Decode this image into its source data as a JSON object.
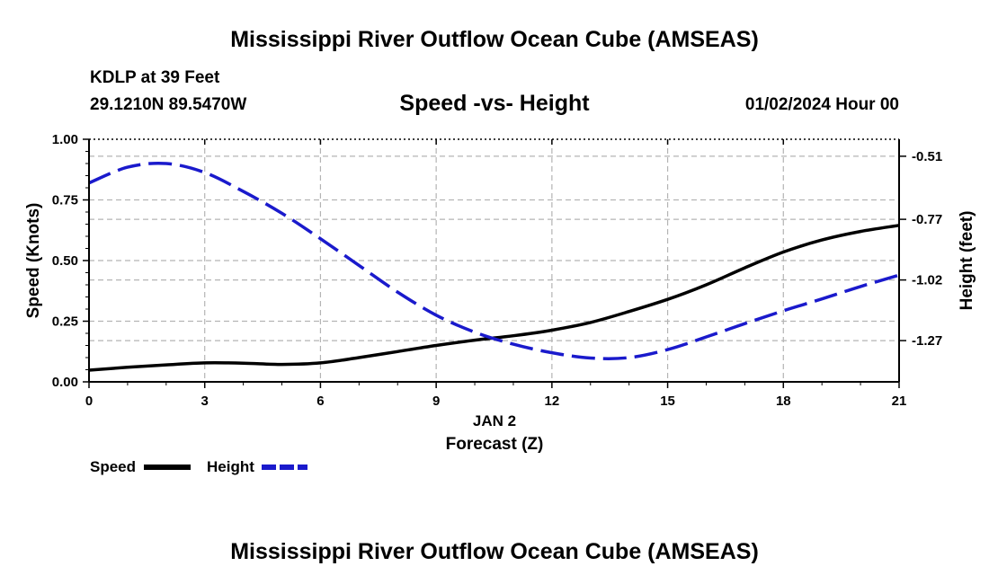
{
  "page": {
    "title": "Mississippi River Outflow Ocean Cube (AMSEAS)",
    "title_bottom": "Mississippi River Outflow Ocean Cube (AMSEAS)",
    "station": "KDLP at 39 Feet",
    "coords": "29.1210N  89.5470W",
    "datetime": "01/02/2024 Hour 00"
  },
  "legend": {
    "speed_label": "Speed",
    "height_label": "Height"
  },
  "colors": {
    "speed": "#000000",
    "height": "#1a1acc",
    "grid": "#b4b4b4"
  },
  "chart_data": {
    "type": "line",
    "title": "Speed -vs- Height",
    "xlabel": "Forecast (Z)",
    "x_date_label": "JAN 2",
    "ylabel": "Speed (Knots)",
    "y2label": "Height (feet)",
    "xlim": [
      0,
      21
    ],
    "ylim": [
      0,
      1
    ],
    "y2lim": [
      -1.44,
      -0.44
    ],
    "x_ticks": [
      0,
      3,
      6,
      9,
      12,
      15,
      18,
      21
    ],
    "x_tick_labels": [
      "0",
      "3",
      "6",
      "9",
      "12",
      "15",
      "18",
      "21"
    ],
    "y_ticks": [
      0,
      0.25,
      0.5,
      0.75,
      1.0
    ],
    "y_tick_labels": [
      "0.00",
      "0.25",
      "0.50",
      "0.75",
      "1.00"
    ],
    "y2_ticks": [
      -1.27,
      -1.02,
      -0.77,
      -0.51
    ],
    "y2_tick_labels": [
      "-1.27",
      "-1.02",
      "-0.77",
      "-0.51"
    ],
    "grid": true,
    "series": [
      {
        "name": "Speed",
        "axis": "left",
        "style": "solid",
        "x": [
          0,
          1,
          2,
          3,
          4,
          5,
          6,
          7,
          8,
          9,
          10,
          11,
          12,
          13,
          14,
          15,
          16,
          17,
          18,
          19,
          20,
          21
        ],
        "y": [
          0.048,
          0.06,
          0.07,
          0.078,
          0.077,
          0.072,
          0.078,
          0.1,
          0.125,
          0.15,
          0.172,
          0.19,
          0.213,
          0.245,
          0.29,
          0.34,
          0.4,
          0.47,
          0.535,
          0.585,
          0.62,
          0.645
        ]
      },
      {
        "name": "Height",
        "axis": "right",
        "style": "dashed",
        "x": [
          0,
          1,
          2,
          3,
          4,
          5,
          6,
          7,
          8,
          9,
          10,
          11,
          12,
          13,
          14,
          15,
          16,
          17,
          18,
          19,
          20,
          21
        ],
        "y": [
          -0.62,
          -0.555,
          -0.54,
          -0.577,
          -0.655,
          -0.745,
          -0.85,
          -0.96,
          -1.07,
          -1.165,
          -1.235,
          -1.285,
          -1.32,
          -1.342,
          -1.34,
          -1.307,
          -1.255,
          -1.2,
          -1.147,
          -1.098,
          -1.047,
          -1.0
        ]
      }
    ]
  }
}
